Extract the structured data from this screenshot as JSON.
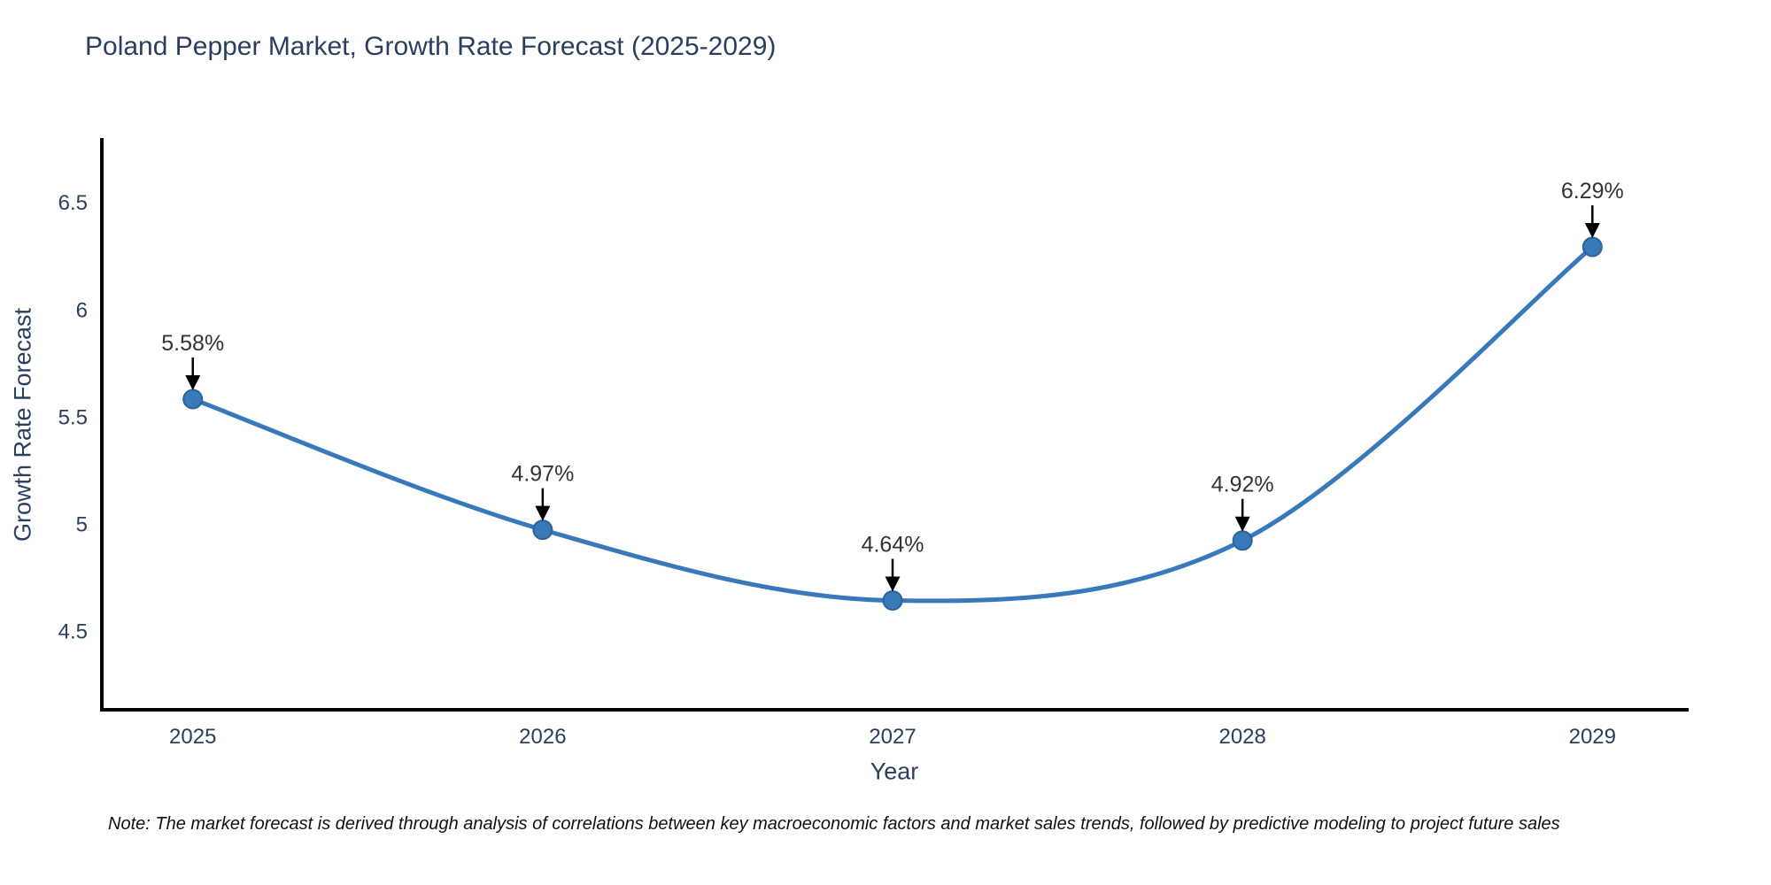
{
  "note": "Note: The market forecast is derived through analysis of correlations between key macroeconomic factors and market sales trends, followed by predictive modeling to project future sales",
  "chart_data": {
    "type": "line",
    "title": "Poland Pepper Market, Growth Rate Forecast (2025-2029)",
    "xlabel": "Year",
    "ylabel": "Growth Rate Forecast",
    "x": [
      2025,
      2026,
      2027,
      2028,
      2029
    ],
    "x_tick_labels": [
      "2025",
      "2026",
      "2027",
      "2028",
      "2029"
    ],
    "y": [
      5.58,
      4.97,
      4.64,
      4.92,
      6.29
    ],
    "point_labels": [
      "5.58%",
      "4.97%",
      "4.64%",
      "4.92%",
      "6.29%"
    ],
    "y_ticks": [
      4.5,
      5,
      5.5,
      6,
      6.5
    ],
    "y_tick_labels": [
      "4.5",
      "5",
      "5.5",
      "6",
      "6.5"
    ],
    "xlim": [
      2024.74,
      2029.27
    ],
    "ylim": [
      4.13,
      6.79
    ],
    "line_shape": "spline",
    "grid": false,
    "legend": false,
    "colors": {
      "line": "#3879b9",
      "marker_fill": "#3879b9",
      "marker_edge": "#2c6398",
      "axis_line": "#000000",
      "tick_text": "#2a3f5f",
      "axis_text": "#2a3f5f",
      "annotation_text": "#333333",
      "arrow": "#000000",
      "background": "#ffffff"
    }
  }
}
